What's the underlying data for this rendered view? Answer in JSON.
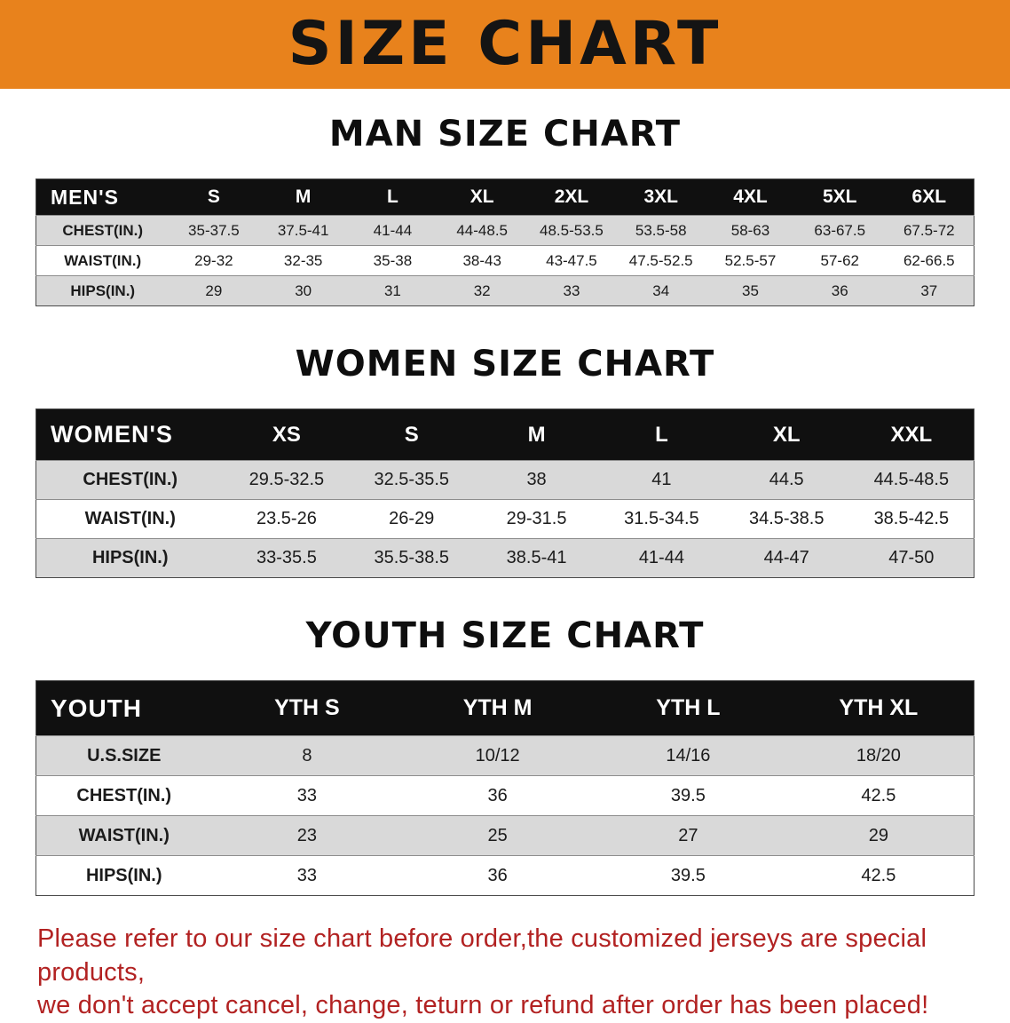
{
  "banner": {
    "title": "SIZE CHART"
  },
  "colors": {
    "banner_bg": "#E8821C",
    "table_header_bg": "#101010",
    "row_shade": "#D9D9D9",
    "notice_text": "#B22222"
  },
  "sections": [
    {
      "heading": "MAN SIZE CHART",
      "table": {
        "header": [
          "MEN'S",
          "S",
          "M",
          "L",
          "XL",
          "2XL",
          "3XL",
          "4XL",
          "5XL",
          "6XL"
        ],
        "rows": [
          [
            "CHEST(IN.)",
            "35-37.5",
            "37.5-41",
            "41-44",
            "44-48.5",
            "48.5-53.5",
            "53.5-58",
            "58-63",
            "63-67.5",
            "67.5-72"
          ],
          [
            "WAIST(IN.)",
            "29-32",
            "32-35",
            "35-38",
            "38-43",
            "43-47.5",
            "47.5-52.5",
            "52.5-57",
            "57-62",
            "62-66.5"
          ],
          [
            "HIPS(IN.)",
            "29",
            "30",
            "31",
            "32",
            "33",
            "34",
            "35",
            "36",
            "37"
          ]
        ]
      }
    },
    {
      "heading": "WOMEN SIZE CHART",
      "table": {
        "header": [
          "WOMEN'S",
          "XS",
          "S",
          "M",
          "L",
          "XL",
          "XXL"
        ],
        "rows": [
          [
            "CHEST(IN.)",
            "29.5-32.5",
            "32.5-35.5",
            "38",
            "41",
            "44.5",
            "44.5-48.5"
          ],
          [
            "WAIST(IN.)",
            "23.5-26",
            "26-29",
            "29-31.5",
            "31.5-34.5",
            "34.5-38.5",
            "38.5-42.5"
          ],
          [
            "HIPS(IN.)",
            "33-35.5",
            "35.5-38.5",
            "38.5-41",
            "41-44",
            "44-47",
            "47-50"
          ]
        ]
      }
    },
    {
      "heading": "YOUTH SIZE CHART",
      "table": {
        "header": [
          "YOUTH",
          "YTH S",
          "YTH M",
          "YTH L",
          "YTH XL"
        ],
        "rows": [
          [
            "U.S.SIZE",
            "8",
            "10/12",
            "14/16",
            "18/20"
          ],
          [
            "CHEST(IN.)",
            "33",
            "36",
            "39.5",
            "42.5"
          ],
          [
            "WAIST(IN.)",
            "23",
            "25",
            "27",
            "29"
          ],
          [
            "HIPS(IN.)",
            "33",
            "36",
            "39.5",
            "42.5"
          ]
        ]
      }
    }
  ],
  "footer": {
    "line1": "Please refer to our size chart before order,the customized jerseys are special products,",
    "line2": "we don't accept cancel, change, teturn or refund after order has been placed!"
  }
}
